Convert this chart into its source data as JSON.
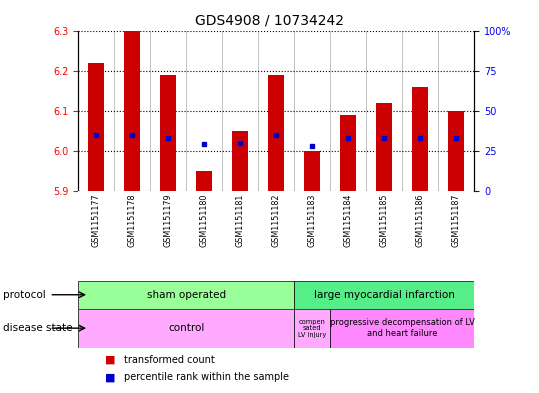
{
  "title": "GDS4908 / 10734242",
  "samples": [
    "GSM1151177",
    "GSM1151178",
    "GSM1151179",
    "GSM1151180",
    "GSM1151181",
    "GSM1151182",
    "GSM1151183",
    "GSM1151184",
    "GSM1151185",
    "GSM1151186",
    "GSM1151187"
  ],
  "transformed_count": [
    6.22,
    6.3,
    6.19,
    5.95,
    6.05,
    6.19,
    6.0,
    6.09,
    6.12,
    6.16,
    6.1
  ],
  "percentile_rank": [
    35,
    35,
    33,
    29,
    30,
    35,
    28,
    33,
    33,
    33,
    33
  ],
  "ylim_left": [
    5.9,
    6.3
  ],
  "ylim_right": [
    0,
    100
  ],
  "yticks_left": [
    5.9,
    6.0,
    6.1,
    6.2,
    6.3
  ],
  "yticks_right": [
    0,
    25,
    50,
    75,
    100
  ],
  "bar_color": "#cc0000",
  "dot_color": "#0000cc",
  "sham_color": "#99ff99",
  "large_color": "#55ee88",
  "control_color": "#ffaaff",
  "comp_color": "#ffaaff",
  "prog_color": "#ff88ff",
  "gray_bg": "#c8c8c8"
}
